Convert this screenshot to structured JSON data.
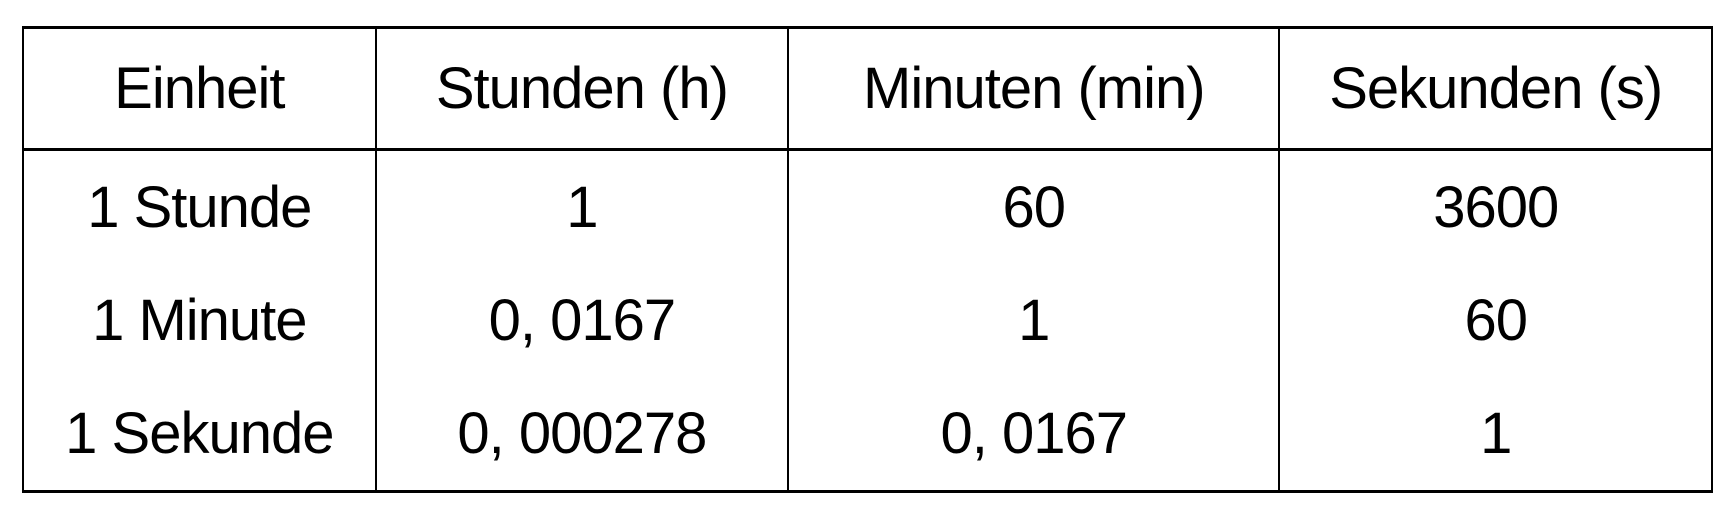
{
  "table": {
    "headers": [
      "Einheit",
      "Stunden (h)",
      "Minuten (min)",
      "Sekunden (s)"
    ],
    "rows": [
      [
        "1 Stunde",
        "1",
        "60",
        "3600"
      ],
      [
        "1 Minute",
        "0, 0167",
        "1",
        "60"
      ],
      [
        "1 Sekunde",
        "0, 000278",
        "0, 0167",
        "1"
      ]
    ]
  }
}
